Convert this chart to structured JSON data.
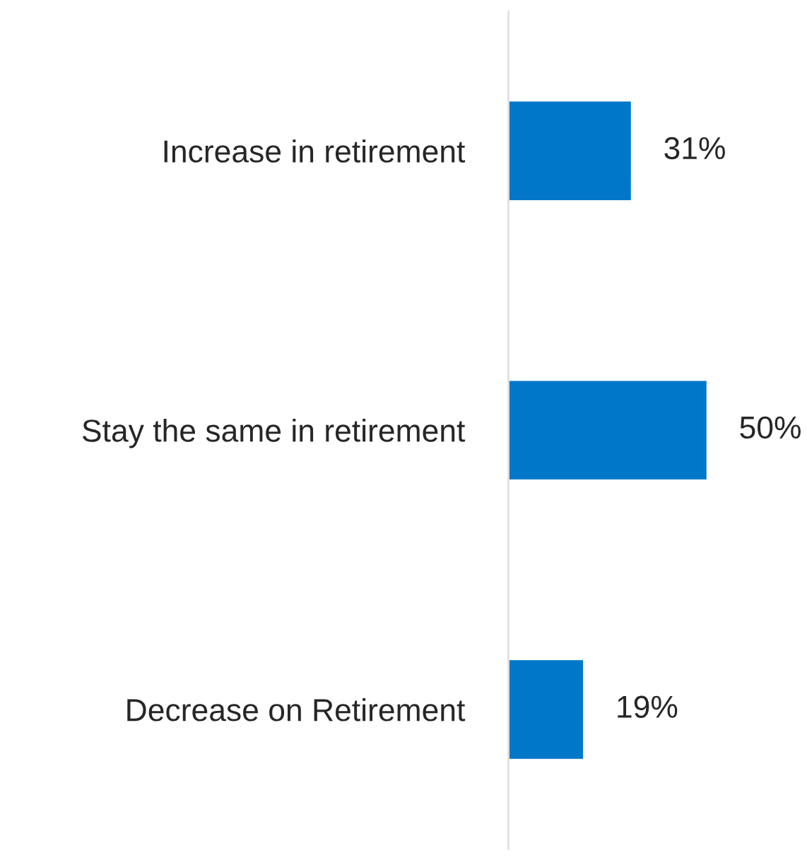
{
  "chart_data": {
    "type": "bar",
    "orientation": "horizontal",
    "categories": [
      "Increase in retirement",
      "Stay the same in retirement",
      "Decrease on Retirement"
    ],
    "values": [
      31,
      50,
      19
    ],
    "value_labels": [
      "31%",
      "50%",
      "19%"
    ],
    "color": "#0077c8",
    "grid": false,
    "legend": false
  }
}
